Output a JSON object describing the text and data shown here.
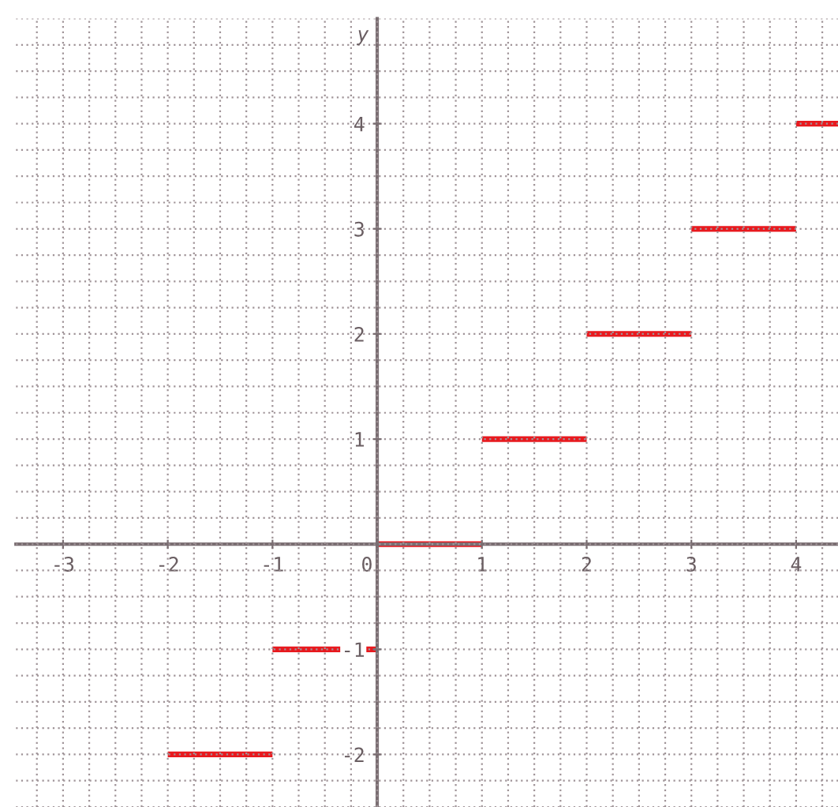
{
  "chart_data": {
    "type": "line",
    "ylabel": "y",
    "series": [
      {
        "x": [
          -2,
          -1
        ],
        "values": [
          -2,
          -2
        ],
        "color": "#e8191e"
      },
      {
        "x": [
          -1,
          0
        ],
        "values": [
          -1,
          -1
        ],
        "color": "#e8191e"
      },
      {
        "x": [
          0,
          1
        ],
        "values": [
          0,
          0
        ],
        "color": "#e8191e"
      },
      {
        "x": [
          1,
          2
        ],
        "values": [
          1,
          1
        ],
        "color": "#e8191e"
      },
      {
        "x": [
          2,
          3
        ],
        "values": [
          2,
          2
        ],
        "color": "#e8191e"
      },
      {
        "x": [
          3,
          4
        ],
        "values": [
          3,
          3
        ],
        "color": "#e8191e"
      },
      {
        "x": [
          4,
          4.4
        ],
        "values": [
          4,
          4
        ],
        "color": "#e8191e"
      }
    ],
    "xlim": [
      -3.45,
      4.4
    ],
    "ylim": [
      -2.5,
      5.0
    ],
    "xticks": [
      -3,
      -2,
      -1,
      0,
      1,
      2,
      3,
      4
    ],
    "yticks": [
      -2,
      -1,
      1,
      2,
      3,
      4
    ],
    "grid": true,
    "marker": "none",
    "line_style": "solid",
    "legend": false
  }
}
